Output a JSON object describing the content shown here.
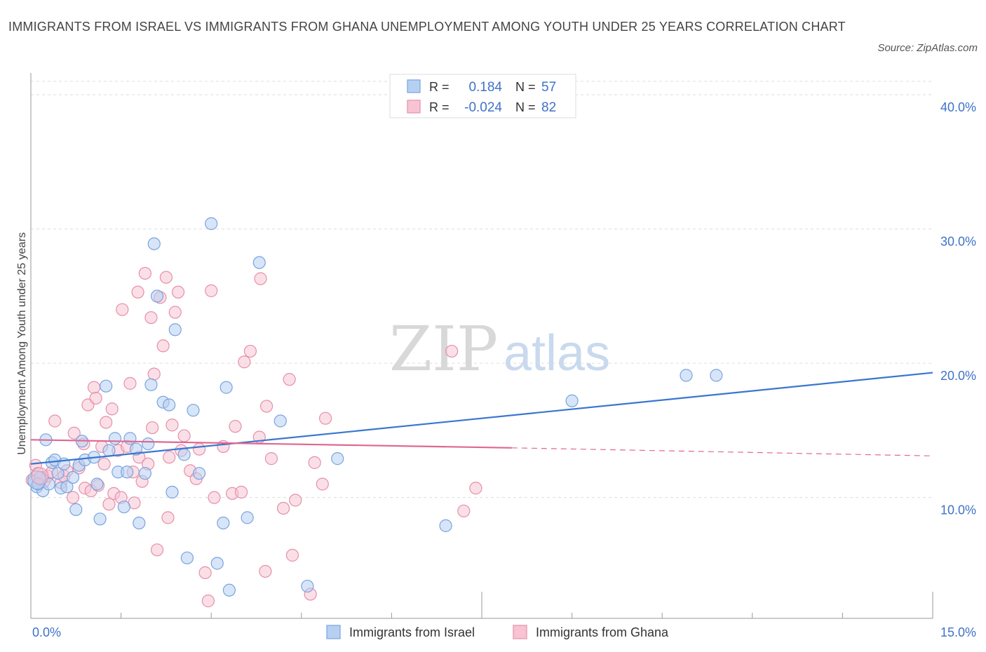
{
  "title": "IMMIGRANTS FROM ISRAEL VS IMMIGRANTS FROM GHANA UNEMPLOYMENT AMONG YOUTH UNDER 25 YEARS CORRELATION CHART",
  "source": "Source: ZipAtlas.com",
  "watermark": {
    "zip": "ZIP",
    "atlas": "atlas"
  },
  "colors": {
    "israel_fill": "#b7d0f2",
    "israel_stroke": "#7aa3de",
    "israel_line": "#3a76cf",
    "ghana_fill": "#f8c4d4",
    "ghana_stroke": "#e58fab",
    "ghana_line": "#e0678f",
    "axis_text": "#3f72c8",
    "grid": "#dddddd"
  },
  "legend": {
    "rows": [
      {
        "r_label": "R =",
        "r_value": "0.184",
        "n_label": "N =",
        "n_value": "57"
      },
      {
        "r_label": "R =",
        "r_value": "-0.024",
        "n_label": "N =",
        "n_value": "82"
      }
    ]
  },
  "chart_data": {
    "type": "scatter",
    "xlabel": "",
    "ylabel": "Unemployment Among Youth under 25 years",
    "xlim": [
      0,
      15
    ],
    "ylim": [
      1.0,
      41.0
    ],
    "x_tick_labels": [
      "0.0%",
      "15.0%"
    ],
    "y_ticks": [
      10,
      20,
      30,
      40
    ],
    "y_tick_labels": [
      "10.0%",
      "20.0%",
      "30.0%",
      "40.0%"
    ],
    "grid": true,
    "legend_position": "top-center",
    "series": [
      {
        "name": "Immigrants from Israel",
        "trend": {
          "x": [
            0,
            15
          ],
          "y": [
            12.5,
            19.3
          ],
          "dashed_from": null
        },
        "points": [
          [
            0.05,
            11.2
          ],
          [
            0.1,
            10.8
          ],
          [
            0.15,
            11.5
          ],
          [
            0.2,
            10.5
          ],
          [
            0.25,
            14.3
          ],
          [
            0.3,
            11.0
          ],
          [
            0.35,
            12.6
          ],
          [
            0.4,
            12.8
          ],
          [
            0.45,
            11.8
          ],
          [
            0.5,
            10.7
          ],
          [
            0.55,
            12.5
          ],
          [
            0.6,
            10.8
          ],
          [
            0.7,
            11.5
          ],
          [
            0.75,
            9.1
          ],
          [
            0.8,
            12.4
          ],
          [
            0.85,
            14.2
          ],
          [
            0.9,
            12.8
          ],
          [
            1.05,
            13.0
          ],
          [
            1.1,
            11.0
          ],
          [
            1.15,
            8.4
          ],
          [
            1.25,
            18.3
          ],
          [
            1.3,
            13.5
          ],
          [
            1.4,
            14.4
          ],
          [
            1.45,
            11.9
          ],
          [
            1.55,
            9.3
          ],
          [
            1.6,
            11.9
          ],
          [
            1.65,
            14.4
          ],
          [
            1.75,
            13.6
          ],
          [
            1.8,
            8.1
          ],
          [
            1.9,
            11.8
          ],
          [
            1.95,
            14.0
          ],
          [
            2.0,
            18.4
          ],
          [
            2.05,
            28.9
          ],
          [
            2.1,
            25.0
          ],
          [
            2.2,
            17.1
          ],
          [
            2.3,
            16.9
          ],
          [
            2.35,
            10.4
          ],
          [
            2.4,
            22.5
          ],
          [
            2.55,
            13.2
          ],
          [
            2.6,
            5.5
          ],
          [
            2.7,
            16.5
          ],
          [
            2.8,
            11.8
          ],
          [
            3.0,
            30.4
          ],
          [
            3.1,
            5.1
          ],
          [
            3.2,
            8.1
          ],
          [
            3.25,
            18.2
          ],
          [
            3.3,
            3.1
          ],
          [
            3.6,
            8.5
          ],
          [
            3.8,
            27.5
          ],
          [
            4.15,
            15.7
          ],
          [
            4.6,
            3.4
          ],
          [
            5.1,
            12.9
          ],
          [
            6.9,
            7.9
          ],
          [
            9.0,
            17.2
          ],
          [
            10.9,
            19.1
          ],
          [
            11.4,
            19.1
          ],
          [
            0.12,
            11.0
          ]
        ]
      },
      {
        "name": "Immigrants from Ghana",
        "trend": {
          "x": [
            0,
            8.0,
            15
          ],
          "y": [
            14.3,
            13.7,
            13.1
          ],
          "dashed_from": 8.0
        },
        "points": [
          [
            0.02,
            11.3
          ],
          [
            0.08,
            12.4
          ],
          [
            0.12,
            11.8
          ],
          [
            0.18,
            11.5
          ],
          [
            0.22,
            11.2
          ],
          [
            0.28,
            11.6
          ],
          [
            0.35,
            11.9
          ],
          [
            0.4,
            15.7
          ],
          [
            0.5,
            11.1
          ],
          [
            0.55,
            11.6
          ],
          [
            0.6,
            12.0
          ],
          [
            0.7,
            10.0
          ],
          [
            0.72,
            14.8
          ],
          [
            0.8,
            12.2
          ],
          [
            0.88,
            14.0
          ],
          [
            0.9,
            10.7
          ],
          [
            0.95,
            16.9
          ],
          [
            1.0,
            10.5
          ],
          [
            1.05,
            18.2
          ],
          [
            1.08,
            17.4
          ],
          [
            1.12,
            10.9
          ],
          [
            1.18,
            13.8
          ],
          [
            1.22,
            12.5
          ],
          [
            1.25,
            15.6
          ],
          [
            1.3,
            9.5
          ],
          [
            1.35,
            16.6
          ],
          [
            1.38,
            10.3
          ],
          [
            1.45,
            13.5
          ],
          [
            1.5,
            10.0
          ],
          [
            1.52,
            24.0
          ],
          [
            1.6,
            13.8
          ],
          [
            1.65,
            18.5
          ],
          [
            1.7,
            11.9
          ],
          [
            1.72,
            9.6
          ],
          [
            1.78,
            25.3
          ],
          [
            1.8,
            13.0
          ],
          [
            1.85,
            11.2
          ],
          [
            1.9,
            26.7
          ],
          [
            1.95,
            12.5
          ],
          [
            2.0,
            23.4
          ],
          [
            2.02,
            15.2
          ],
          [
            2.05,
            19.2
          ],
          [
            2.1,
            6.1
          ],
          [
            2.15,
            24.9
          ],
          [
            2.2,
            21.3
          ],
          [
            2.25,
            26.4
          ],
          [
            2.28,
            8.5
          ],
          [
            2.3,
            13.0
          ],
          [
            2.35,
            15.4
          ],
          [
            2.4,
            23.8
          ],
          [
            2.45,
            25.3
          ],
          [
            2.5,
            13.5
          ],
          [
            2.55,
            14.6
          ],
          [
            2.65,
            12.0
          ],
          [
            2.75,
            11.4
          ],
          [
            2.8,
            13.6
          ],
          [
            2.9,
            4.4
          ],
          [
            2.95,
            2.3
          ],
          [
            3.0,
            25.4
          ],
          [
            3.05,
            10.0
          ],
          [
            3.2,
            13.8
          ],
          [
            3.35,
            10.3
          ],
          [
            3.4,
            15.3
          ],
          [
            3.5,
            10.4
          ],
          [
            3.55,
            20.1
          ],
          [
            3.65,
            20.9
          ],
          [
            3.8,
            14.5
          ],
          [
            3.82,
            26.3
          ],
          [
            3.9,
            4.5
          ],
          [
            3.92,
            16.8
          ],
          [
            4.0,
            12.9
          ],
          [
            4.2,
            9.2
          ],
          [
            4.3,
            18.8
          ],
          [
            4.35,
            5.7
          ],
          [
            4.4,
            9.8
          ],
          [
            4.65,
            2.8
          ],
          [
            4.72,
            12.6
          ],
          [
            4.85,
            11.0
          ],
          [
            4.9,
            15.9
          ],
          [
            7.0,
            20.9
          ],
          [
            7.2,
            9.0
          ],
          [
            7.4,
            10.7
          ]
        ]
      }
    ]
  }
}
